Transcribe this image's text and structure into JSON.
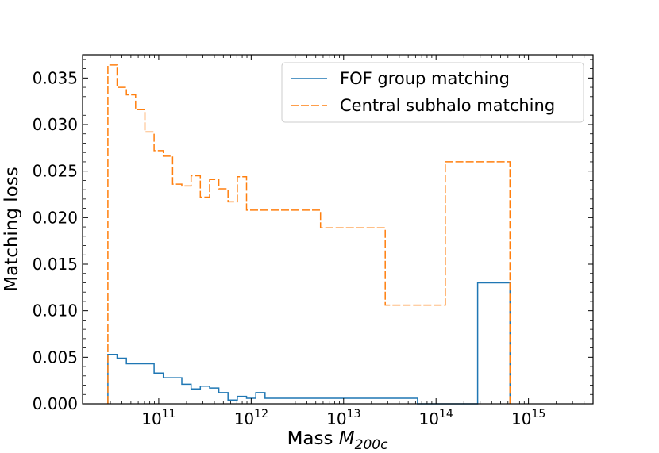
{
  "chart_data": {
    "type": "line",
    "drawstyle": "steps-post",
    "title": "",
    "xlabel_prefix": "Mass ",
    "xlabel_var": "M",
    "xlabel_sub": "200c",
    "ylabel": "Matching loss",
    "xscale": "log",
    "xlim": [
      15000000000.0,
      5000000000000000.0
    ],
    "ylim": [
      0,
      0.0375
    ],
    "yticks": [
      {
        "value": 0.0,
        "label": "0.000"
      },
      {
        "value": 0.005,
        "label": "0.005"
      },
      {
        "value": 0.01,
        "label": "0.010"
      },
      {
        "value": 0.015,
        "label": "0.015"
      },
      {
        "value": 0.02,
        "label": "0.020"
      },
      {
        "value": 0.025,
        "label": "0.025"
      },
      {
        "value": 0.03,
        "label": "0.030"
      },
      {
        "value": 0.035,
        "label": "0.035"
      }
    ],
    "xticks": [
      {
        "exp": 11,
        "base": "10",
        "sup": "11"
      },
      {
        "exp": 12,
        "base": "10",
        "sup": "12"
      },
      {
        "exp": 13,
        "base": "10",
        "sup": "13"
      },
      {
        "exp": 14,
        "base": "10",
        "sup": "14"
      },
      {
        "exp": 15,
        "base": "10",
        "sup": "15"
      }
    ],
    "legend_position": "upper right",
    "series": [
      {
        "name": "FOF group matching",
        "color": "#1f77b4",
        "dash": "solid",
        "edges_log10": [
          10.45,
          10.55,
          10.65,
          10.75,
          10.85,
          10.95,
          11.05,
          11.15,
          11.25,
          11.35,
          11.45,
          11.55,
          11.65,
          11.75,
          11.85,
          11.95,
          12.05,
          12.15,
          12.45,
          12.75,
          13.05,
          13.45,
          13.8,
          14.1,
          14.45,
          14.8
        ],
        "values": [
          0.0053,
          0.0049,
          0.0043,
          0.0043,
          0.0043,
          0.0033,
          0.0028,
          0.0028,
          0.0021,
          0.0016,
          0.0019,
          0.0017,
          0.0012,
          0.0004,
          0.0008,
          0.0006,
          0.0012,
          0.0006,
          0.0006,
          0.0006,
          0.0006,
          0.0006,
          0.0,
          0.0,
          0.013
        ]
      },
      {
        "name": "Central subhalo matching",
        "color": "#ff7f0e",
        "dash": "dashed",
        "edges_log10": [
          10.45,
          10.55,
          10.65,
          10.75,
          10.85,
          10.95,
          11.05,
          11.15,
          11.25,
          11.35,
          11.45,
          11.55,
          11.65,
          11.75,
          11.85,
          11.95,
          12.05,
          12.15,
          12.45,
          12.75,
          13.05,
          13.45,
          13.8,
          14.1,
          14.45,
          14.8
        ],
        "values": [
          0.0364,
          0.034,
          0.0332,
          0.0316,
          0.0292,
          0.0272,
          0.0266,
          0.0236,
          0.0234,
          0.0245,
          0.0222,
          0.0241,
          0.0231,
          0.0217,
          0.0244,
          0.0208,
          0.0208,
          0.0208,
          0.0208,
          0.0189,
          0.0189,
          0.0106,
          0.0106,
          0.026,
          0.026
        ]
      }
    ]
  }
}
